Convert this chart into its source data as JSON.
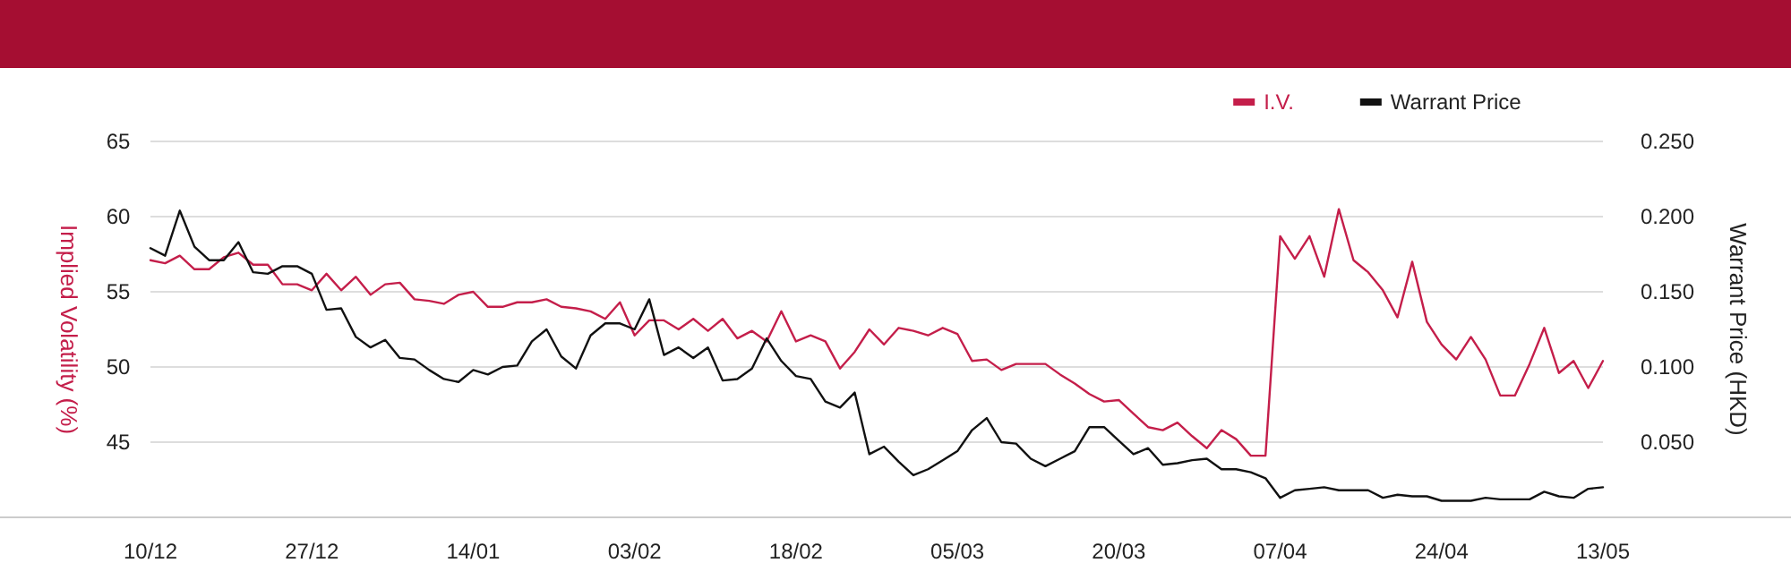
{
  "chart_data": {
    "type": "line",
    "ylabel": "Implied Volatility (%)",
    "y2label": "Warrant Price (HKD)",
    "categories": [
      "10/12",
      null,
      null,
      null,
      null,
      null,
      null,
      null,
      null,
      null,
      null,
      "27/12",
      null,
      null,
      null,
      null,
      null,
      null,
      null,
      null,
      null,
      null,
      "14/01",
      null,
      null,
      null,
      null,
      null,
      null,
      null,
      null,
      null,
      null,
      "03/02",
      null,
      null,
      null,
      null,
      null,
      null,
      null,
      null,
      null,
      null,
      "18/02",
      null,
      null,
      null,
      null,
      null,
      null,
      null,
      null,
      null,
      null,
      "05/03",
      null,
      null,
      null,
      null,
      null,
      null,
      null,
      null,
      null,
      null,
      "20/03",
      null,
      null,
      null,
      null,
      null,
      null,
      null,
      null,
      null,
      null,
      "07/04",
      null,
      null,
      null,
      null,
      null,
      null,
      null,
      null,
      null,
      null,
      "24/04",
      null,
      null,
      null,
      null,
      null,
      null,
      null,
      null,
      null,
      null,
      "13/05"
    ],
    "series": [
      {
        "name": "I.V.",
        "color": "#c41e4a",
        "values": [
          57.1,
          56.9,
          57.4,
          56.5,
          56.5,
          57.3,
          57.6,
          56.8,
          56.8,
          55.5,
          55.5,
          55.1,
          56.2,
          55.1,
          56.0,
          54.8,
          55.5,
          55.6,
          54.5,
          54.4,
          54.2,
          54.8,
          55.0,
          54.0,
          54.0,
          54.3,
          54.3,
          54.5,
          54.0,
          53.9,
          53.7,
          53.2,
          54.3,
          52.1,
          53.1,
          53.1,
          52.5,
          53.2,
          52.4,
          53.2,
          51.9,
          52.4,
          51.7,
          53.7,
          51.7,
          52.1,
          51.7,
          49.9,
          51.0,
          52.5,
          51.5,
          52.6,
          52.4,
          52.1,
          52.6,
          52.2,
          50.4,
          50.5,
          49.8,
          50.2,
          50.2,
          50.2,
          49.5,
          48.9,
          48.2,
          47.7,
          47.8,
          46.9,
          46.0,
          45.8,
          46.3,
          45.4,
          44.6,
          45.8,
          45.2,
          44.1,
          44.1,
          58.7,
          57.2,
          58.7,
          56.0,
          60.5,
          57.1,
          56.3,
          55.1,
          53.3,
          57.0,
          53.0,
          51.5,
          50.5,
          52.0,
          50.5,
          48.1,
          48.1,
          50.2,
          52.6,
          49.6,
          50.4,
          48.6,
          50.4
        ]
      },
      {
        "name": "Warrant Price",
        "color": "#111111",
        "axis": "y2",
        "values": [
          0.179,
          0.174,
          0.204,
          0.18,
          0.171,
          0.171,
          0.183,
          0.163,
          0.162,
          0.167,
          0.167,
          0.162,
          0.138,
          0.139,
          0.12,
          0.113,
          0.118,
          0.106,
          0.105,
          0.098,
          0.092,
          0.09,
          0.098,
          0.095,
          0.1,
          0.101,
          0.117,
          0.125,
          0.107,
          0.099,
          0.121,
          0.129,
          0.129,
          0.125,
          0.145,
          0.108,
          0.113,
          0.106,
          0.113,
          0.091,
          0.092,
          0.099,
          0.119,
          0.104,
          0.094,
          0.092,
          0.077,
          0.073,
          0.083,
          0.042,
          0.047,
          0.037,
          0.028,
          0.032,
          0.038,
          0.044,
          0.058,
          0.066,
          0.05,
          0.049,
          0.039,
          0.034,
          0.039,
          0.044,
          0.06,
          0.06,
          0.051,
          0.042,
          0.046,
          0.035,
          0.036,
          0.038,
          0.039,
          0.032,
          0.032,
          0.03,
          0.026,
          0.013,
          0.018,
          0.019,
          0.02,
          0.018,
          0.018,
          0.018,
          0.013,
          0.015,
          0.014,
          0.014,
          0.011,
          0.011,
          0.011,
          0.013,
          0.012,
          0.012,
          0.012,
          0.017,
          0.014,
          0.013,
          0.019,
          0.02
        ]
      }
    ],
    "ylim": [
      40,
      65
    ],
    "yticks": [
      45,
      50,
      55,
      60,
      65
    ],
    "y2lim": [
      0,
      0.25
    ],
    "y2ticks": [
      {
        "value": 0.05,
        "label": "0.050"
      },
      {
        "value": 0.1,
        "label": "0.100"
      },
      {
        "value": 0.15,
        "label": "0.150"
      },
      {
        "value": 0.2,
        "label": "0.200"
      },
      {
        "value": 0.25,
        "label": "0.250"
      }
    ],
    "grid": "y",
    "legend": "top right"
  }
}
